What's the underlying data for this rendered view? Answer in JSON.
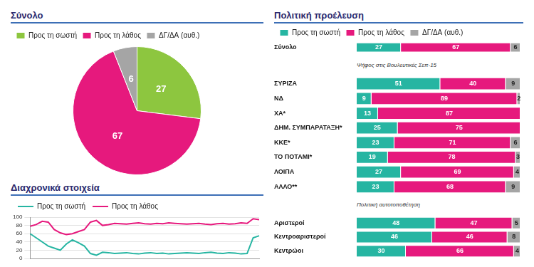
{
  "chart_data": [
    {
      "type": "pie",
      "title": "Σύνολο",
      "categories": [
        "Προς τη σωστή",
        "Προς τη λάθος",
        "ΔΓ/ΔΑ (αυθ.)"
      ],
      "values": [
        27,
        67,
        6
      ],
      "colors": [
        "#8dc63f",
        "#e6197d",
        "#a5a5a5"
      ],
      "legend": "top",
      "data_labels": true
    },
    {
      "type": "bar",
      "title": "Πολιτική προέλευση",
      "orientation": "horizontal",
      "stacked": true,
      "data_labels": true,
      "legend": "top",
      "tick_labels": "y",
      "xlim": [
        0,
        100
      ],
      "categories": [
        "Σύνολο"
      ],
      "series": [
        {
          "name": "Προς τη σωστή",
          "color": "#26b5a2",
          "values": [
            27
          ]
        },
        {
          "name": "Προς τη λάθος",
          "color": "#e6197d",
          "values": [
            67
          ]
        },
        {
          "name": "ΔΓ/ΔΑ (αυθ.)",
          "color": "#a5a5a5",
          "values": [
            6
          ]
        }
      ]
    },
    {
      "type": "bar",
      "subtitle": "Ψήφος στις Βουλευτικές Σεπ-15",
      "orientation": "horizontal",
      "stacked": true,
      "data_labels": true,
      "tick_labels": "y",
      "xlim": [
        0,
        100
      ],
      "categories": [
        "ΣΥΡΙΖΑ",
        "ΝΔ",
        "ΧΑ*",
        "ΔΗΜ. ΣΥΜΠΑΡΑΤΑΞΗ*",
        "ΚΚΕ*",
        "ΤΟ ΠΟΤΑΜΙ*",
        "ΛΟΙΠΑ",
        "ΑΛΛΟ**"
      ],
      "series": [
        {
          "name": "Προς τη σωστή",
          "color": "#26b5a2",
          "values": [
            51,
            9,
            13,
            25,
            23,
            19,
            27,
            23
          ]
        },
        {
          "name": "Προς τη λάθος",
          "color": "#e6197d",
          "values": [
            40,
            89,
            87,
            75,
            71,
            78,
            69,
            68
          ]
        },
        {
          "name": "ΔΓ/ΔΑ (αυθ.)",
          "color": "#a5a5a5",
          "values": [
            9,
            2,
            null,
            null,
            6,
            3,
            4,
            9
          ]
        }
      ]
    },
    {
      "type": "bar",
      "subtitle": "Πολιτική αυτοτοποθέτηση",
      "orientation": "horizontal",
      "stacked": true,
      "data_labels": true,
      "tick_labels": "y",
      "xlim": [
        0,
        100
      ],
      "categories": [
        "Αριστεροί",
        "Κεντροαριστεροί",
        "Κεντρώοι"
      ],
      "series": [
        {
          "name": "Προς τη σωστή",
          "color": "#26b5a2",
          "values": [
            48,
            46,
            30
          ]
        },
        {
          "name": "Προς τη λάθος",
          "color": "#e6197d",
          "values": [
            47,
            46,
            66
          ]
        },
        {
          "name": "ΔΓ/ΔΑ (αυθ.)",
          "color": "#a5a5a5",
          "values": [
            5,
            8,
            4
          ]
        }
      ]
    },
    {
      "type": "line",
      "title": "Διαχρονικά στοιχεία",
      "legend": "top",
      "tick_labels": "y",
      "grid": true,
      "ylim": [
        0,
        100
      ],
      "yticks": [
        0,
        20,
        40,
        60,
        80,
        100
      ],
      "categories": [
        null,
        null,
        null,
        null,
        null,
        null,
        null,
        null,
        null,
        null,
        null,
        null,
        null,
        null,
        null,
        null,
        null,
        null,
        null,
        null,
        null,
        null,
        null,
        null,
        null,
        null,
        null,
        null,
        null,
        null,
        null,
        null,
        null,
        null,
        null,
        null,
        null,
        null,
        null
      ],
      "series": [
        {
          "name": "Προς τη σωστή",
          "color": "#26b5a2",
          "values": [
            60,
            50,
            40,
            30,
            25,
            20,
            35,
            45,
            38,
            30,
            12,
            8,
            15,
            14,
            12,
            13,
            14,
            12,
            11,
            13,
            14,
            12,
            13,
            11,
            12,
            13,
            14,
            13,
            12,
            14,
            15,
            13,
            12,
            14,
            13,
            11,
            12,
            50,
            55
          ]
        },
        {
          "name": "Προς τη λάθος",
          "color": "#e6197d",
          "values": [
            78,
            82,
            90,
            88,
            70,
            62,
            58,
            60,
            65,
            70,
            88,
            92,
            80,
            82,
            85,
            84,
            83,
            85,
            86,
            84,
            83,
            85,
            84,
            86,
            85,
            84,
            83,
            84,
            85,
            83,
            82,
            84,
            85,
            83,
            84,
            86,
            85,
            96,
            94
          ]
        }
      ]
    }
  ]
}
